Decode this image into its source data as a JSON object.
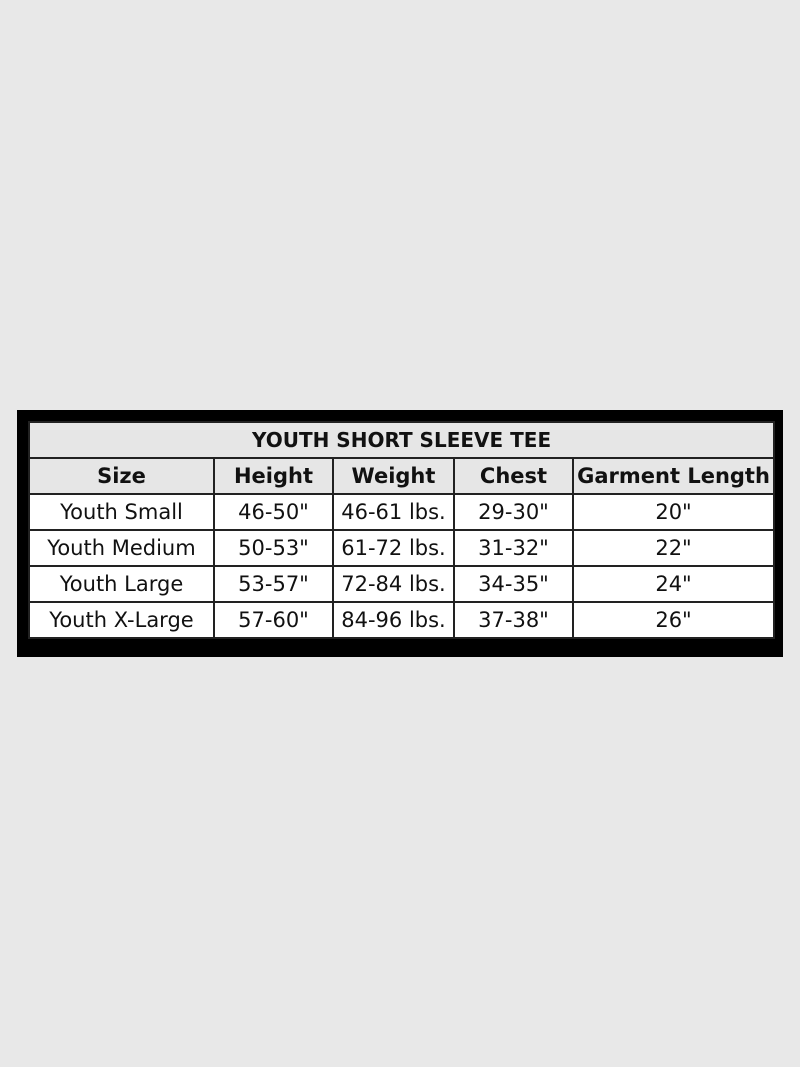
{
  "title": "YOUTH SHORT SLEEVE TEE",
  "headers": [
    "Size",
    "Height",
    "Weight",
    "Chest",
    "Garment Length"
  ],
  "rows": [
    [
      "Youth Small",
      "46-50\"",
      "46-61 lbs.",
      "29-30\"",
      "20\""
    ],
    [
      "Youth Medium",
      "50-53\"",
      "61-72 lbs.",
      "31-32\"",
      "22\""
    ],
    [
      "Youth Large",
      "53-57\"",
      "72-84 lbs.",
      "34-35\"",
      "24\""
    ],
    [
      "Youth X-Large",
      "57-60\"",
      "84-96 lbs.",
      "37-38\"",
      "26\""
    ]
  ]
}
